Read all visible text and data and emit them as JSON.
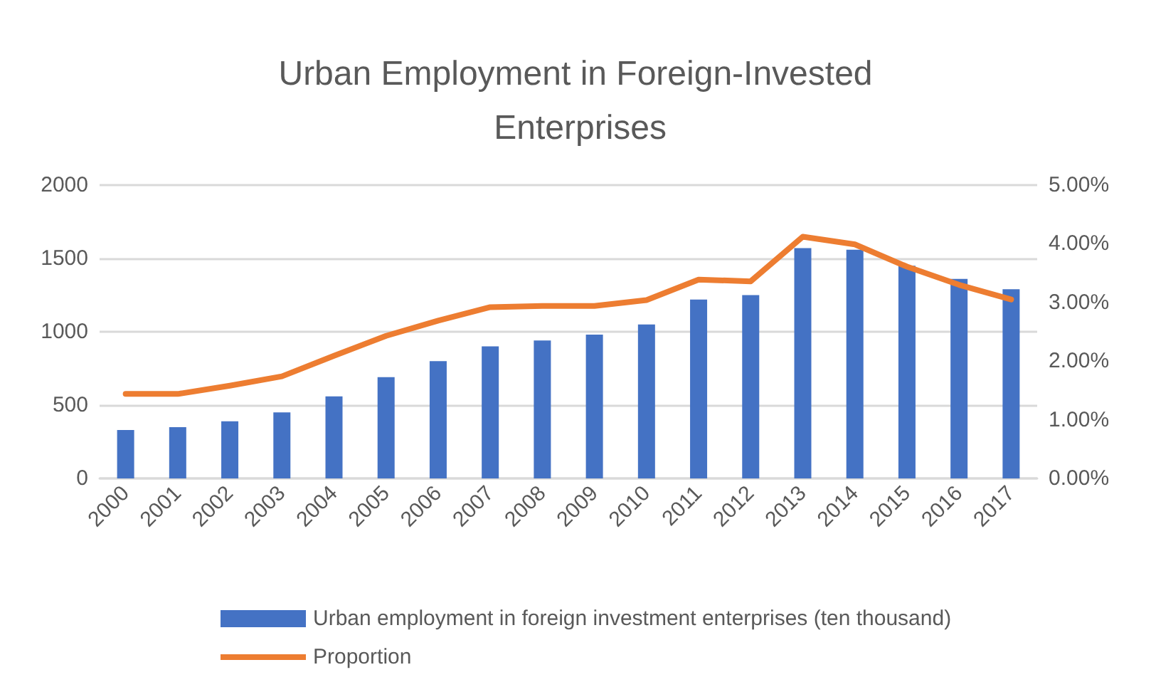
{
  "chart_data": {
    "type": "bar",
    "title": "Urban Employment in Foreign-Invested Enterprises",
    "categories": [
      "2000",
      "2001",
      "2002",
      "2003",
      "2004",
      "2005",
      "2006",
      "2007",
      "2008",
      "2009",
      "2010",
      "2011",
      "2012",
      "2013",
      "2014",
      "2015",
      "2016",
      "2017"
    ],
    "series": [
      {
        "name": "Urban employment in foreign investment enterprises (ten thousand)",
        "color": "#4472c4",
        "values": [
          330,
          350,
          390,
          450,
          560,
          690,
          800,
          900,
          940,
          980,
          1050,
          1220,
          1250,
          1570,
          1560,
          1450,
          1360,
          1290
        ]
      },
      {
        "name": "Proportion",
        "type": "line",
        "axis": "y2",
        "color": "#ed7d31",
        "values": [
          1.44,
          1.44,
          1.58,
          1.74,
          2.09,
          2.43,
          2.69,
          2.92,
          2.94,
          2.94,
          3.04,
          3.39,
          3.36,
          4.12,
          3.99,
          3.61,
          3.3,
          3.05
        ]
      }
    ],
    "ylim": [
      0,
      2000
    ],
    "yticks": [
      0,
      500,
      1000,
      1500,
      2000
    ],
    "y2lim": [
      0,
      5
    ],
    "y2ticks": [
      {
        "value": 0,
        "label": "0.00%"
      },
      {
        "value": 1,
        "label": "1.00%"
      },
      {
        "value": 2,
        "label": "2.00%"
      },
      {
        "value": 3,
        "label": "3.00%"
      },
      {
        "value": 4,
        "label": "4.00%"
      },
      {
        "value": 5,
        "label": "5.00%"
      }
    ],
    "grid": "y",
    "legend": "bottom",
    "marker": "none"
  }
}
